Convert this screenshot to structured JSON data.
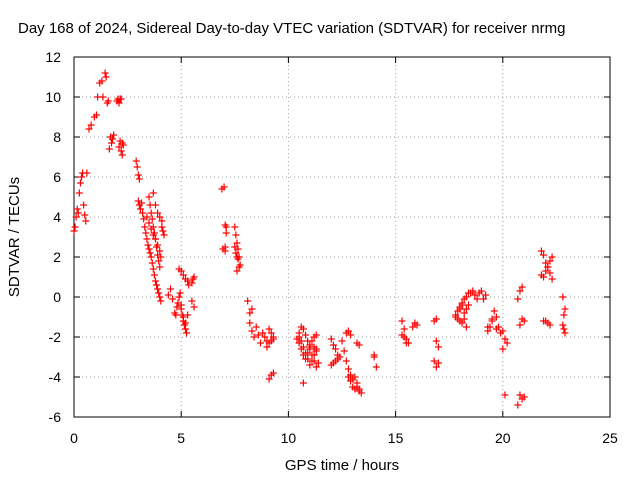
{
  "chart_data": {
    "type": "scatter",
    "title": "Day 168 of 2024, Sidereal Day-to-day VTEC variation (SDTVAR) for receiver nrmg",
    "xlabel": "GPS time / hours",
    "ylabel": "SDTVAR / TECUs",
    "xlim": [
      0,
      25
    ],
    "ylim": [
      -6,
      12
    ],
    "xticks": [
      0,
      5,
      10,
      15,
      20,
      25
    ],
    "yticks": [
      -6,
      -4,
      -2,
      0,
      2,
      4,
      6,
      8,
      10,
      12
    ],
    "xtick_labels": [
      "0",
      "5",
      "10",
      "15",
      "20",
      "25"
    ],
    "ytick_labels": [
      "-6",
      "-4",
      "-2",
      "0",
      "2",
      "4",
      "6",
      "8",
      "10",
      "12"
    ],
    "grid": true,
    "marker": "+",
    "series": [
      {
        "name": "SDTVAR",
        "color": "#ff0000",
        "x": [
          0.0,
          0.05,
          0.1,
          0.15,
          0.2,
          0.25,
          0.3,
          0.35,
          0.4,
          0.45,
          0.5,
          0.55,
          0.6,
          0.7,
          0.8,
          0.95,
          1.05,
          1.1,
          1.2,
          1.3,
          1.35,
          1.45,
          1.5,
          1.55,
          1.6,
          1.65,
          1.7,
          1.75,
          1.8,
          1.85,
          2.0,
          2.05,
          2.1,
          2.15,
          2.2,
          2.25,
          2.3,
          2.1,
          2.15,
          2.2,
          2.25,
          2.9,
          2.95,
          3.0,
          3.05,
          3.0,
          3.05,
          3.1,
          3.15,
          3.2,
          3.25,
          3.3,
          3.35,
          3.4,
          3.45,
          3.5,
          3.55,
          3.6,
          3.65,
          3.7,
          3.75,
          3.8,
          3.85,
          3.9,
          3.95,
          4.0,
          4.05,
          3.4,
          3.5,
          3.6,
          3.7,
          3.8,
          3.9,
          4.0,
          4.05,
          4.1,
          4.15,
          4.2,
          3.5,
          3.55,
          3.6,
          3.65,
          3.7,
          3.75,
          3.8,
          3.85,
          3.9,
          3.95,
          4.0,
          3.7,
          3.8,
          3.9,
          4.0,
          4.1,
          4.4,
          4.5,
          4.6,
          4.7,
          4.75,
          4.8,
          4.85,
          4.9,
          4.95,
          5.0,
          5.05,
          5.1,
          5.15,
          5.2,
          5.25,
          4.9,
          5.0,
          5.1,
          5.2,
          5.3,
          5.35,
          5.0,
          5.1,
          5.2,
          5.3,
          5.5,
          5.55,
          5.6,
          5.5,
          5.6,
          6.9,
          7.0,
          7.05,
          7.1,
          6.95,
          7.05,
          7.1,
          7.05,
          7.5,
          7.55,
          7.6,
          7.65,
          7.7,
          7.75,
          7.6,
          7.65,
          7.7,
          7.5,
          7.55,
          7.6,
          8.1,
          8.2,
          8.3,
          8.2,
          8.3,
          8.4,
          8.5,
          8.6,
          8.7,
          8.8,
          8.9,
          9.0,
          9.1,
          9.2,
          9.3,
          9.0,
          9.1,
          9.2,
          9.3,
          9.1,
          9.2,
          9.3,
          10.4,
          10.5,
          10.6,
          10.7,
          10.8,
          10.9,
          11.0,
          11.1,
          11.2,
          11.3,
          10.5,
          10.6,
          10.7,
          10.8,
          10.9,
          11.0,
          11.1,
          11.2,
          11.3,
          10.5,
          10.6,
          10.7,
          10.8,
          10.9,
          11.0,
          11.1,
          11.2,
          11.3,
          11.4,
          10.7,
          11.0,
          11.2,
          11.3,
          12.0,
          12.1,
          12.2,
          12.3,
          12.4,
          12.5,
          12.6,
          12.7,
          12.8,
          12.9,
          13.0,
          13.1,
          13.2,
          13.3,
          12.0,
          12.1,
          12.2,
          12.3,
          12.8,
          12.9,
          13.0,
          13.1,
          13.2,
          13.3,
          13.4,
          12.7,
          12.8,
          12.9,
          13.2,
          13.3,
          14.0,
          14.1,
          14.0,
          15.3,
          15.4,
          15.5,
          15.6,
          15.4,
          15.5,
          15.3,
          15.8,
          15.9,
          16.0,
          16.8,
          16.9,
          17.0,
          16.8,
          16.9,
          17.0,
          16.9,
          17.8,
          17.9,
          18.0,
          18.1,
          18.2,
          18.3,
          18.4,
          17.8,
          17.9,
          18.0,
          18.1,
          18.2,
          18.3,
          18.0,
          18.1,
          18.2,
          18.3,
          18.4,
          18.5,
          18.6,
          18.7,
          18.8,
          18.9,
          19.0,
          19.1,
          19.2,
          19.3,
          19.4,
          19.5,
          19.6,
          19.7,
          19.3,
          19.5,
          19.7,
          19.8,
          19.9,
          20.0,
          20.1,
          20.2,
          20.0,
          20.1,
          20.7,
          20.8,
          20.9,
          21.0,
          20.7,
          20.8,
          20.9,
          20.8,
          20.9,
          21.0,
          21.8,
          21.9,
          22.0,
          22.1,
          22.2,
          22.3,
          21.8,
          21.9,
          22.0,
          22.1,
          22.2,
          22.3,
          22.0,
          22.1,
          22.2,
          21.9,
          22.8,
          22.85,
          22.9,
          22.8,
          22.9,
          22.85
        ],
        "y": [
          3.3,
          3.5,
          4.0,
          4.4,
          4.2,
          5.2,
          5.7,
          6.0,
          6.2,
          4.6,
          4.1,
          3.8,
          6.2,
          8.4,
          8.6,
          9.0,
          9.1,
          10.0,
          10.7,
          10.8,
          10.0,
          11.2,
          11.0,
          9.7,
          9.8,
          7.4,
          8.0,
          7.7,
          7.9,
          8.1,
          9.8,
          9.9,
          9.7,
          9.9,
          9.9,
          7.7,
          7.6,
          7.5,
          7.8,
          7.3,
          7.1,
          6.8,
          6.5,
          6.1,
          5.9,
          4.8,
          4.6,
          4.4,
          4.7,
          4.2,
          3.9,
          3.5,
          3.2,
          2.9,
          2.6,
          2.4,
          2.2,
          2.0,
          1.7,
          1.4,
          1.1,
          0.8,
          0.6,
          0.4,
          0.2,
          0.0,
          -0.2,
          4.0,
          3.7,
          3.4,
          3.1,
          2.9,
          2.6,
          2.3,
          2.0,
          3.5,
          3.3,
          3.1,
          5.0,
          4.6,
          4.2,
          3.9,
          3.5,
          3.2,
          2.9,
          2.5,
          2.1,
          1.8,
          1.5,
          5.2,
          4.6,
          4.2,
          4.0,
          3.8,
          0.1,
          0.4,
          -0.1,
          -0.8,
          -0.9,
          -0.5,
          -0.3,
          0.0,
          0.2,
          -0.4,
          -0.9,
          -1.2,
          -1.4,
          -1.6,
          -1.8,
          1.4,
          1.3,
          1.1,
          0.9,
          0.8,
          0.6,
          -0.6,
          -1.0,
          -1.3,
          -0.9,
          0.7,
          0.9,
          1.0,
          -0.2,
          -0.5,
          5.4,
          5.5,
          3.6,
          3.2,
          2.4,
          2.3,
          3.5,
          2.5,
          3.5,
          3.1,
          2.7,
          2.4,
          2.0,
          1.6,
          1.3,
          1.9,
          1.5,
          2.5,
          2.2,
          2.0,
          -0.2,
          -0.8,
          -0.6,
          -1.3,
          -1.7,
          -2.0,
          -1.5,
          -1.9,
          -2.3,
          -1.8,
          -2.0,
          -2.2,
          -1.6,
          -1.8,
          -2.1,
          -2.5,
          -2.3,
          -2.2,
          -2.0,
          -4.1,
          -3.9,
          -3.8,
          -2.1,
          -2.3,
          -2.6,
          -2.9,
          -3.1,
          -2.8,
          -2.5,
          -2.2,
          -2.0,
          -1.9,
          -2.0,
          -2.2,
          -2.5,
          -2.8,
          -3.1,
          -3.4,
          -3.2,
          -2.9,
          -2.6,
          -1.8,
          -1.5,
          -1.6,
          -1.9,
          -2.2,
          -2.6,
          -2.9,
          -3.2,
          -3.5,
          -3.3,
          -4.3,
          -2.4,
          -2.5,
          -2.7,
          -3.4,
          -3.3,
          -3.2,
          -3.1,
          -3.0,
          -2.2,
          -2.7,
          -3.2,
          -3.6,
          -3.9,
          -4.1,
          -4.0,
          -4.3,
          -4.6,
          -2.1,
          -2.4,
          -2.6,
          -2.9,
          -4.0,
          -4.2,
          -4.5,
          -4.6,
          -4.5,
          -4.7,
          -4.8,
          -1.8,
          -1.7,
          -1.9,
          -2.3,
          -2.4,
          -2.9,
          -3.5,
          -3.0,
          -1.2,
          -1.6,
          -2.1,
          -2.3,
          -2.0,
          -2.3,
          -1.9,
          -1.5,
          -1.3,
          -1.4,
          -1.2,
          -2.2,
          -2.5,
          -3.2,
          -3.5,
          -3.3,
          -1.1,
          -0.9,
          -0.7,
          -0.5,
          -0.3,
          -0.1,
          0.0,
          0.2,
          -1.0,
          -1.1,
          -1.2,
          -1.3,
          -1.1,
          -1.5,
          -0.6,
          -0.4,
          -0.8,
          -0.6,
          -0.4,
          0.2,
          0.3,
          0.1,
          -0.1,
          0.2,
          0.3,
          -0.1,
          0.1,
          -1.7,
          -1.5,
          -1.2,
          -0.7,
          -1.6,
          -1.5,
          -1.1,
          -1.0,
          -1.5,
          -1.8,
          -1.7,
          -2.1,
          -2.3,
          -2.6,
          -4.9,
          -5.4,
          -1.4,
          -1.1,
          -1.2,
          -0.1,
          0.3,
          0.5,
          -4.9,
          -5.1,
          -5.0,
          2.3,
          2.1,
          1.7,
          1.5,
          1.2,
          0.9,
          1.1,
          1.0,
          1.3,
          1.5,
          1.8,
          2.0,
          -1.2,
          -1.3,
          -1.4,
          -1.2,
          0.0,
          -0.9,
          -0.6,
          -1.4,
          -1.8,
          -1.6
        ]
      }
    ]
  }
}
